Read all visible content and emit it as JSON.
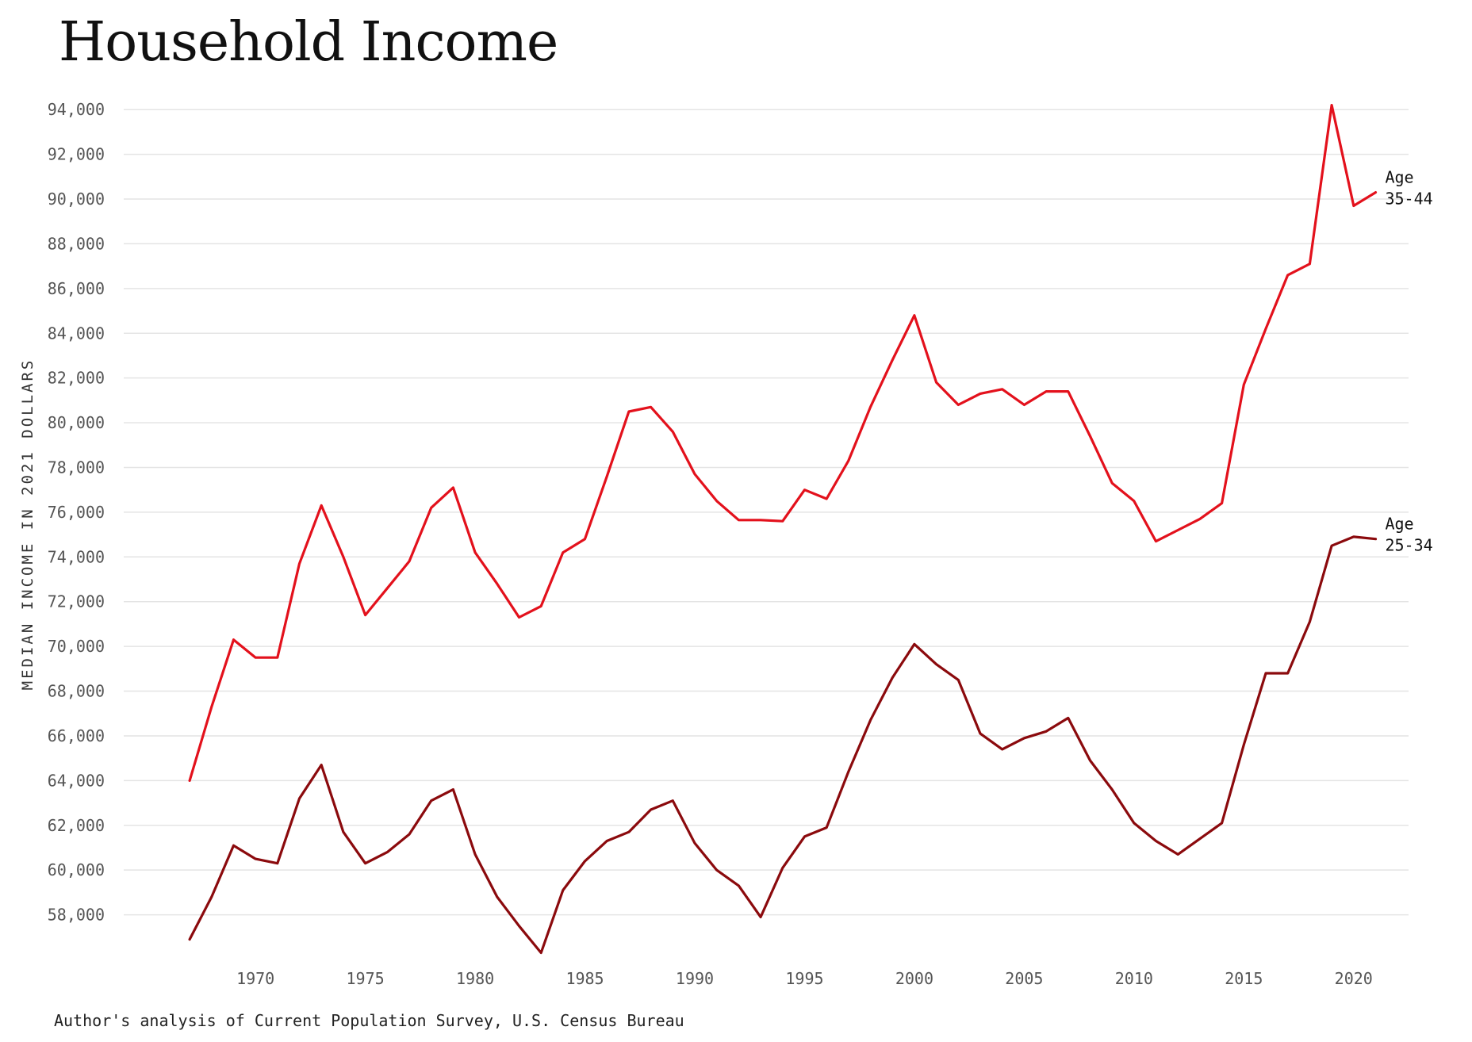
{
  "chart_data": {
    "type": "line",
    "title": "Household Income",
    "ylabel": "MEDIAN INCOME IN 2021 DOLLARS",
    "xlabel": "",
    "source": "Author's analysis of Current Population Survey, U.S. Census Bureau",
    "x": [
      1967,
      1968,
      1969,
      1970,
      1971,
      1972,
      1973,
      1974,
      1975,
      1976,
      1977,
      1978,
      1979,
      1980,
      1981,
      1982,
      1983,
      1984,
      1985,
      1986,
      1987,
      1988,
      1989,
      1990,
      1991,
      1992,
      1993,
      1994,
      1995,
      1996,
      1997,
      1998,
      1999,
      2000,
      2001,
      2002,
      2003,
      2004,
      2005,
      2006,
      2007,
      2008,
      2009,
      2010,
      2011,
      2012,
      2013,
      2014,
      2015,
      2016,
      2017,
      2018,
      2019,
      2020,
      2021
    ],
    "xlim": [
      1964,
      2022.5
    ],
    "ylim": [
      56000,
      95000
    ],
    "x_ticks": [
      1970,
      1975,
      1980,
      1985,
      1990,
      1995,
      2000,
      2005,
      2010,
      2015,
      2020
    ],
    "y_ticks": [
      58000,
      60000,
      62000,
      64000,
      66000,
      68000,
      70000,
      72000,
      74000,
      76000,
      78000,
      80000,
      82000,
      84000,
      86000,
      88000,
      90000,
      92000,
      94000
    ],
    "y_tick_labels": [
      "58,000",
      "60,000",
      "62,000",
      "64,000",
      "66,000",
      "68,000",
      "70,000",
      "72,000",
      "74,000",
      "76,000",
      "78,000",
      "80,000",
      "82,000",
      "84,000",
      "86,000",
      "88,000",
      "90,000",
      "92,000",
      "94,000"
    ],
    "grid": "horizontal",
    "series": [
      {
        "name": "Age 35-44",
        "label_lines": [
          "Age",
          "35-44"
        ],
        "color": "#e3111c",
        "values": [
          64000,
          67300,
          70300,
          69500,
          69500,
          73700,
          76300,
          74000,
          71400,
          72600,
          73800,
          76200,
          77100,
          74200,
          72800,
          71300,
          71800,
          74200,
          74800,
          77600,
          80500,
          80700,
          79600,
          77700,
          76500,
          75650,
          75650,
          75600,
          77000,
          76600,
          78300,
          80700,
          82800,
          84800,
          81800,
          80800,
          81300,
          81500,
          80800,
          81400,
          81400,
          79400,
          77300,
          76500,
          74700,
          75200,
          75700,
          76400,
          81700,
          84200,
          86600,
          87100,
          94200,
          89700,
          90300
        ]
      },
      {
        "name": "Age 25-34",
        "label_lines": [
          "Age",
          "25-34"
        ],
        "color": "#8b0a0d",
        "values": [
          56900,
          58800,
          61100,
          60500,
          60300,
          63200,
          64700,
          61700,
          60300,
          60800,
          61600,
          63100,
          63600,
          60700,
          58800,
          57500,
          56300,
          59100,
          60400,
          61300,
          61700,
          62700,
          63100,
          61200,
          60000,
          59300,
          57900,
          60100,
          61500,
          61900,
          64400,
          66700,
          68600,
          70100,
          69200,
          68500,
          66100,
          65400,
          65900,
          66200,
          66800,
          64900,
          63600,
          62100,
          61300,
          60700,
          61400,
          62100,
          65600,
          68800,
          68800,
          71100,
          74500,
          74900,
          74800
        ]
      }
    ]
  }
}
